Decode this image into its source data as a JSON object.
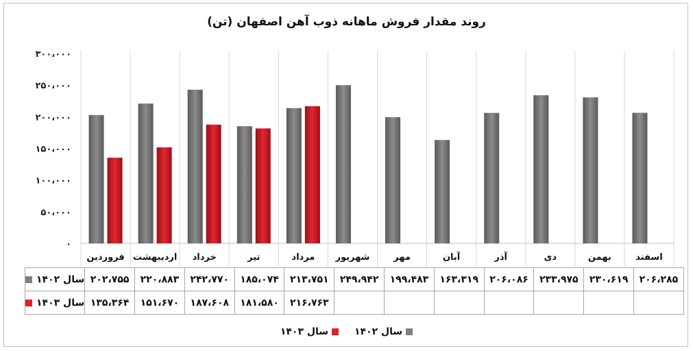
{
  "chart_data": {
    "type": "bar",
    "title": "روند مقدار فروش ماهانه ذوب آهن اصفهان (تن)",
    "categories": [
      "فروردین",
      "اردیبهشت",
      "خرداد",
      "تیر",
      "مرداد",
      "شهریور",
      "مهر",
      "آبان",
      "آذر",
      "دی",
      "بهمن",
      "اسفند"
    ],
    "ylim": [
      0,
      300000
    ],
    "yticks": [
      0,
      50000,
      100000,
      150000,
      200000,
      250000,
      300000
    ],
    "ytick_labels": [
      "۰",
      "۵۰،۰۰۰",
      "۱۰۰،۰۰۰",
      "۱۵۰،۰۰۰",
      "۲۰۰،۰۰۰",
      "۲۵۰،۰۰۰",
      "۳۰۰،۰۰۰"
    ],
    "grid": "vertical-separators",
    "legend_position": "bottom",
    "series": [
      {
        "name": "سال ۱۴۰۲",
        "color": "#7f7f7f",
        "values": [
          202755,
          220883,
          242770,
          185074,
          213751,
          249942,
          199483,
          163319,
          206086,
          233975,
          230619,
          206285
        ],
        "labels": [
          "۲۰۲،۷۵۵",
          "۲۲۰،۸۸۳",
          "۲۴۲،۷۷۰",
          "۱۸۵،۰۷۴",
          "۲۱۳،۷۵۱",
          "۲۴۹،۹۴۲",
          "۱۹۹،۴۸۳",
          "۱۶۳،۳۱۹",
          "۲۰۶،۰۸۶",
          "۲۳۳،۹۷۵",
          "۲۳۰،۶۱۹",
          "۲۰۶،۲۸۵"
        ]
      },
      {
        "name": "سال ۱۴۰۳",
        "color": "#e0202a",
        "values": [
          135364,
          151670,
          187608,
          181580,
          216763,
          null,
          null,
          null,
          null,
          null,
          null,
          null
        ],
        "labels": [
          "۱۳۵،۳۶۴",
          "۱۵۱،۶۷۰",
          "۱۸۷،۶۰۸",
          "۱۸۱،۵۸۰",
          "۲۱۶،۷۶۳",
          "",
          "",
          "",
          "",
          "",
          "",
          ""
        ]
      }
    ]
  }
}
